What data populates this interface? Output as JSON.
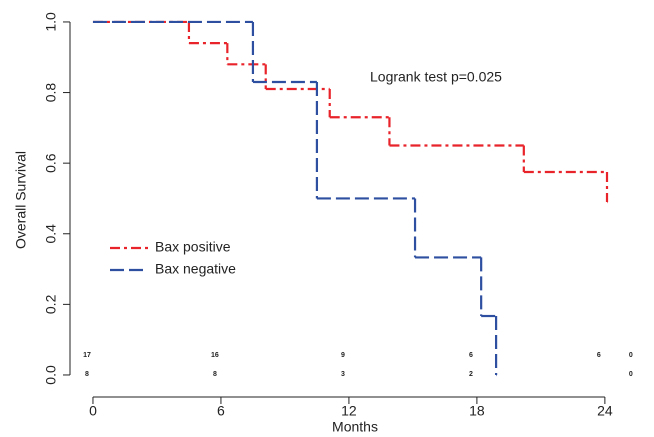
{
  "chart_data": {
    "type": "step",
    "xlabel": "Months",
    "ylabel": "Overall Survival",
    "annotation": "Logrank test p=0.025",
    "xlim": [
      -1.1,
      25.6
    ],
    "ylim": [
      -0.01,
      1.05
    ],
    "xticks": [
      0,
      6,
      12,
      18,
      24
    ],
    "yticks": [
      {
        "value": 0.0,
        "label": "0.0"
      },
      0.2,
      0.4,
      0.6,
      0.8,
      {
        "value": 1.0,
        "label": "1.0"
      }
    ],
    "legend": "left",
    "series": [
      {
        "name": "Bax positive",
        "color": "#e8232a",
        "dash": "10 4 3 4",
        "x": [
          0,
          4.5,
          6.3,
          8.1,
          11.1,
          13.9,
          20.2,
          24.1
        ],
        "values": [
          1.0,
          0.94,
          0.88,
          0.81,
          0.73,
          0.65,
          0.575,
          0.49
        ]
      },
      {
        "name": "Bax negative",
        "color": "#2e4fa0",
        "dash": "14 5",
        "x": [
          0,
          7.5,
          10.5,
          15.1,
          18.2,
          18.9
        ],
        "values": [
          1.0,
          0.83,
          0.5,
          0.333,
          0.167,
          0.0
        ]
      }
    ],
    "at_risk": {
      "x": [
        0,
        6,
        12,
        18,
        24,
        25.5
      ],
      "rows": [
        [
          17,
          16,
          9,
          6,
          6,
          0
        ],
        [
          8,
          8,
          3,
          2,
          null,
          0
        ]
      ]
    }
  }
}
